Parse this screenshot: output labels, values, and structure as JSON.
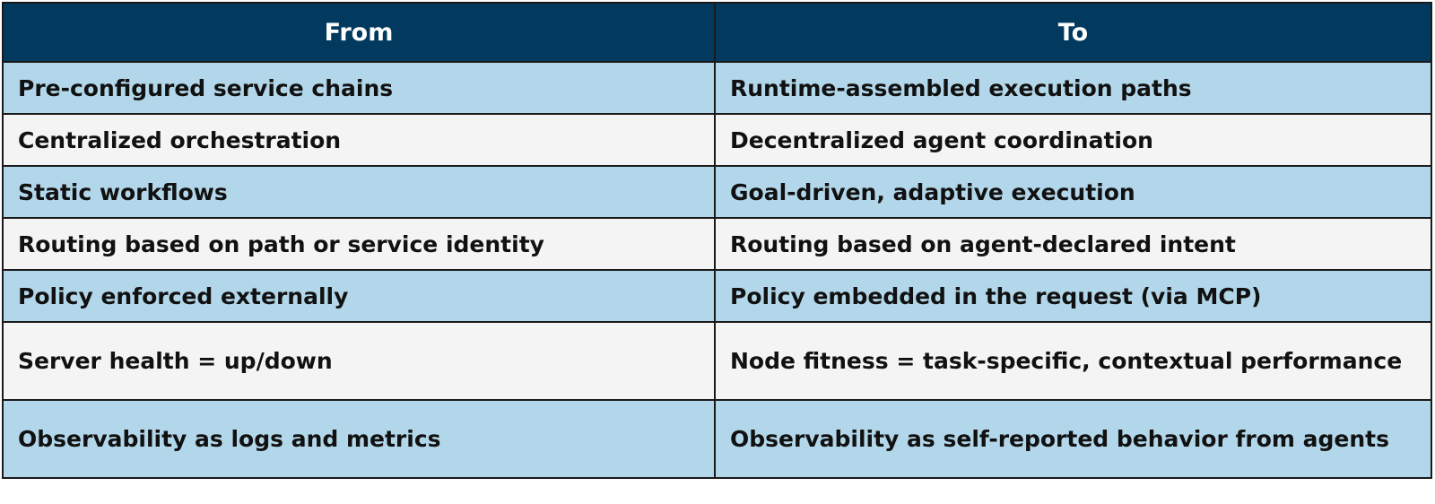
{
  "table": {
    "headers": [
      "From",
      "To"
    ],
    "rows": [
      [
        "Pre-configured service chains",
        "Runtime-assembled execution paths"
      ],
      [
        "Centralized orchestration",
        "Decentralized agent coordination"
      ],
      [
        "Static workflows",
        "Goal-driven, adaptive execution"
      ],
      [
        "Routing based on path or service identity",
        "Routing based on agent-declared intent"
      ],
      [
        "Policy enforced externally",
        "Policy embedded in the request (via MCP)"
      ],
      [
        "Server health = up/down",
        "Node fitness = task-specific, contextual performance"
      ],
      [
        "Observability as logs and metrics",
        "Observability as self-reported behavior from agents"
      ]
    ]
  },
  "colors": {
    "header_bg": "#013a5e",
    "row_blue": "#b3d7ea",
    "row_gray": "#f4f4f4"
  }
}
